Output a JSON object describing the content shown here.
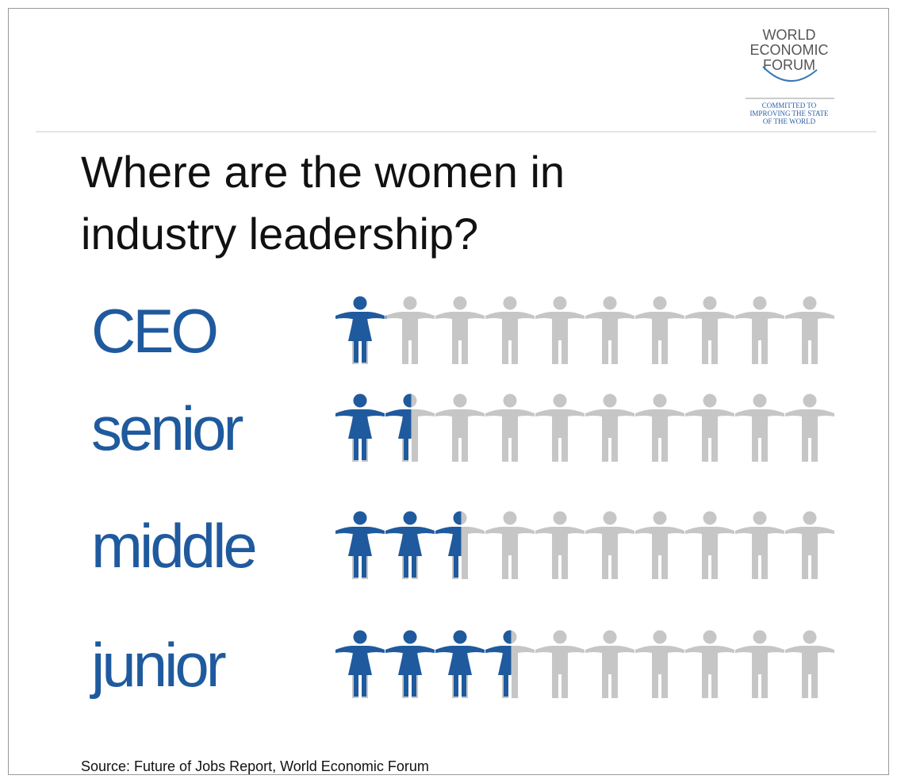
{
  "chart_data": {
    "type": "pictogram",
    "title": "Where are the women in industry leadership?",
    "logo": [
      "WORLD",
      "ECONOMIC",
      "FORUM"
    ],
    "tagline": [
      "COMMITTED TO",
      "IMPROVING THE STATE",
      "OF THE WORLD"
    ],
    "categories": [
      "CEO",
      "senior",
      "middle",
      "junior"
    ],
    "values": [
      1,
      1.5,
      2.5,
      3.5
    ],
    "total": 10,
    "color": "#1f5a9e",
    "base_color": "#c6c6c6",
    "source": "Source: Future of Jobs Report, World Economic Forum"
  }
}
